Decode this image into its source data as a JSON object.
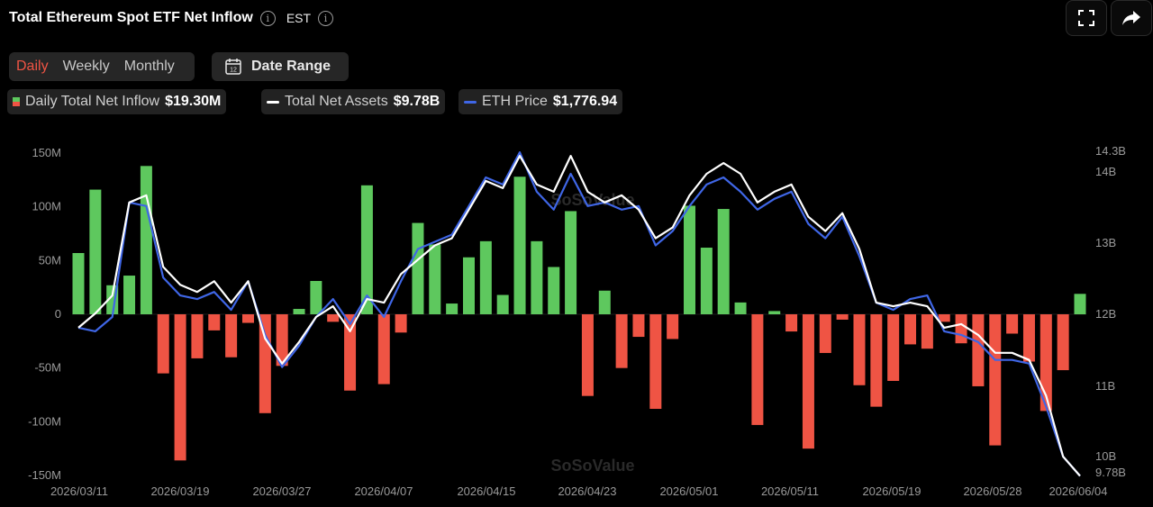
{
  "header": {
    "title": "Total Ethereum Spot ETF Net Inflow",
    "timezone": "EST"
  },
  "controls": {
    "period_tabs": [
      "Daily",
      "Weekly",
      "Monthly"
    ],
    "active_tab": "Daily",
    "date_range_label": "Date Range",
    "date_range_icon_text": "12"
  },
  "legend": {
    "inflow_label": "Daily Total Net Inflow",
    "inflow_value": "$19.30M",
    "assets_label": "Total Net Assets",
    "assets_value": "$9.78B",
    "price_label": "ETH Price",
    "price_value": "$1,776.94"
  },
  "watermark": "SoSoValue",
  "colors": {
    "positive": "#5ec85e",
    "negative": "#ef5444",
    "assets_line": "#ffffff",
    "price_line": "#3f66e6",
    "background": "#000000"
  },
  "chart_data": {
    "type": "bar",
    "x_tick_labels": [
      "2026/03/11",
      "2026/03/19",
      "2026/03/27",
      "2026/04/07",
      "2026/04/15",
      "2026/04/23",
      "2026/05/01",
      "2026/05/11",
      "2026/05/19",
      "2026/05/28",
      "2026/06/04"
    ],
    "y_left": {
      "ticks": [
        150,
        100,
        50,
        0,
        -50,
        -100,
        -150
      ],
      "tick_labels": [
        "150M",
        "100M",
        "50M",
        "0",
        "-50M",
        "-100M",
        "-150M"
      ],
      "range": [
        -150,
        150
      ]
    },
    "y_right": {
      "ticks": [
        14.3,
        14,
        13,
        12,
        11,
        10,
        9.78
      ],
      "tick_labels": [
        "14.3B",
        "14B",
        "13B",
        "12B",
        "11B",
        "10B",
        "9.78B"
      ],
      "range": [
        9.78,
        14.3
      ]
    },
    "series": [
      {
        "name": "Daily Total Net Inflow",
        "values": [
          57,
          116,
          27,
          36,
          138,
          -55,
          -136,
          -41,
          -15,
          -40,
          -8,
          -92,
          -48,
          5,
          31,
          -7,
          -71,
          120,
          -65,
          -17,
          85,
          65,
          10,
          53,
          68,
          18,
          128,
          68,
          44,
          96,
          -76,
          22,
          -50,
          -21,
          -88,
          -23,
          101,
          62,
          98,
          11,
          -103,
          3,
          -16,
          -125,
          -36,
          -5,
          -66,
          -86,
          -62,
          -28,
          -32,
          -7,
          -27,
          -67,
          -122,
          -18,
          -44,
          -90,
          -52,
          19
        ]
      },
      {
        "name": "Total Net Assets",
        "values": [
          11.85,
          12.05,
          12.3,
          13.6,
          13.7,
          12.7,
          12.45,
          12.35,
          12.5,
          12.2,
          12.5,
          11.7,
          11.35,
          11.65,
          12.0,
          12.15,
          11.8,
          12.25,
          12.2,
          12.6,
          12.8,
          13.0,
          13.1,
          13.5,
          13.9,
          13.8,
          14.25,
          13.85,
          13.75,
          14.25,
          13.75,
          13.6,
          13.7,
          13.5,
          13.1,
          13.25,
          13.7,
          14.0,
          14.15,
          14.0,
          13.6,
          13.75,
          13.85,
          13.4,
          13.2,
          13.45,
          12.95,
          12.2,
          12.15,
          12.2,
          12.15,
          11.85,
          11.9,
          11.75,
          11.5,
          11.5,
          11.4,
          10.9,
          10.05,
          9.78
        ]
      },
      {
        "name": "ETH Price",
        "values": [
          11.85,
          11.8,
          12.0,
          13.6,
          13.55,
          12.55,
          12.3,
          12.25,
          12.35,
          12.1,
          12.5,
          11.75,
          11.3,
          11.6,
          12.0,
          12.25,
          11.9,
          12.3,
          12.0,
          12.5,
          12.95,
          13.05,
          13.15,
          13.55,
          13.95,
          13.85,
          14.3,
          13.75,
          13.5,
          14.0,
          13.55,
          13.6,
          13.5,
          13.55,
          13.0,
          13.2,
          13.55,
          13.85,
          13.95,
          13.75,
          13.5,
          13.65,
          13.75,
          13.3,
          13.1,
          13.4,
          12.85,
          12.2,
          12.1,
          12.25,
          12.3,
          11.8,
          11.75,
          11.65,
          11.4,
          11.4,
          11.35,
          10.75,
          10.05,
          9.78
        ]
      }
    ]
  }
}
